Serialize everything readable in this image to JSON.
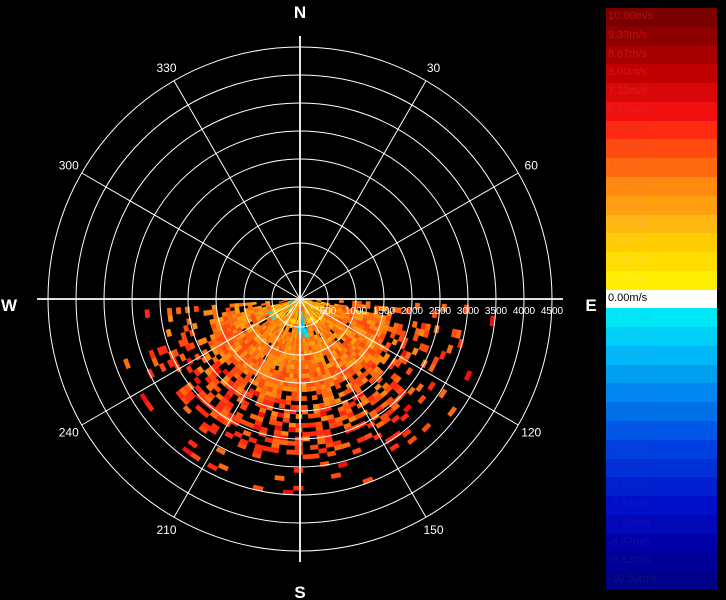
{
  "chart_data": {
    "type": "polar-ppi",
    "title": "",
    "compass": {
      "north": "N",
      "east": "E",
      "south": "S",
      "west": "W"
    },
    "angle_labels": [
      "30",
      "60",
      "120",
      "150",
      "210",
      "240",
      "300",
      "330"
    ],
    "range_ticks": [
      "500",
      "1000",
      "1500",
      "2000",
      "2500",
      "3000",
      "3500",
      "4000",
      "4500"
    ],
    "range_max": 4500,
    "unit": "m/s",
    "colorbar": [
      {
        "label": "10.00m/s",
        "value": 10.0,
        "color": "#7a0000",
        "text_color": "#b81010"
      },
      {
        "label": "9.33m/s",
        "value": 9.33,
        "color": "#8e0000",
        "text_color": "#c01010"
      },
      {
        "label": "8.67m/s",
        "value": 8.67,
        "color": "#a80000",
        "text_color": "#c81414"
      },
      {
        "label": "8.00m/s",
        "value": 8.0,
        "color": "#c00000",
        "text_color": "#d01818"
      },
      {
        "label": "7.33m/s",
        "value": 7.33,
        "color": "#d80808",
        "text_color": "#d81c1c"
      },
      {
        "label": "6.67m/s",
        "value": 6.67,
        "color": "#f01010",
        "text_color": "#e02020"
      },
      {
        "label": "6.00m/s",
        "value": 6.0,
        "color": "#ff2a10",
        "text_color": "#e83020"
      },
      {
        "label": "5.33m/s",
        "value": 5.33,
        "color": "#ff4a10",
        "text_color": "#f04a20"
      },
      {
        "label": "4.67m/s",
        "value": 4.67,
        "color": "#ff6a10",
        "text_color": "#f86420"
      },
      {
        "label": "4.00m/s",
        "value": 4.0,
        "color": "#ff8a10",
        "text_color": "#ff8020"
      },
      {
        "label": "3.33m/s",
        "value": 3.33,
        "color": "#ffa010",
        "text_color": "#ff9828"
      },
      {
        "label": "2.67m/s",
        "value": 2.67,
        "color": "#ffb810",
        "text_color": "#ffb030"
      },
      {
        "label": "2.00m/s",
        "value": 2.0,
        "color": "#ffcc00",
        "text_color": "#ffc830"
      },
      {
        "label": "1.33m/s",
        "value": 1.33,
        "color": "#ffdd00",
        "text_color": "#ffdc30"
      },
      {
        "label": "0.67m/s",
        "value": 0.67,
        "color": "#ffee00",
        "text_color": "#ffee30"
      },
      {
        "label": "0.00m/s",
        "value": 0.0,
        "color": "#ffffff",
        "text_color": "#ffffff"
      },
      {
        "label": "-0.67m/s",
        "value": -0.67,
        "color": "#00e8f8",
        "text_color": "#10d8f0"
      },
      {
        "label": "-1.33m/s",
        "value": -1.33,
        "color": "#00d0f8",
        "text_color": "#10c8f0"
      },
      {
        "label": "-2.00m/s",
        "value": -2.0,
        "color": "#00b8f8",
        "text_color": "#10b0f0"
      },
      {
        "label": "-2.67m/s",
        "value": -2.67,
        "color": "#00a0f0",
        "text_color": "#1098f0"
      },
      {
        "label": "-3.33m/s",
        "value": -3.33,
        "color": "#0088f0",
        "text_color": "#1080f0"
      },
      {
        "label": "-4.00m/s",
        "value": -4.0,
        "color": "#0070e8",
        "text_color": "#1068e8"
      },
      {
        "label": "-4.67m/s",
        "value": -4.67,
        "color": "#0058e8",
        "text_color": "#1050e0"
      },
      {
        "label": "-5.33m/s",
        "value": -5.33,
        "color": "#0040e0",
        "text_color": "#1040d8"
      },
      {
        "label": "-6.00m/s",
        "value": -6.0,
        "color": "#0030d8",
        "text_color": "#1030d0"
      },
      {
        "label": "-6.67m/s",
        "value": -6.67,
        "color": "#0020d0",
        "text_color": "#1020c8"
      },
      {
        "label": "-7.33m/s",
        "value": -7.33,
        "color": "#0010c8",
        "text_color": "#1018c0"
      },
      {
        "label": "-8.00m/s",
        "value": -8.0,
        "color": "#0008b8",
        "text_color": "#1010b0"
      },
      {
        "label": "-8.67m/s",
        "value": -8.67,
        "color": "#0000a8",
        "text_color": "#1010a0"
      },
      {
        "label": "-9.33m/s",
        "value": -9.33,
        "color": "#000098",
        "text_color": "#101090"
      },
      {
        "label": "-10.00m/s",
        "value": -10.0,
        "color": "#000088",
        "text_color": "#101080"
      }
    ],
    "sector": {
      "azimuth_range_deg": [
        92,
        264
      ],
      "core_range_m": [
        0,
        1600
      ],
      "outer_range_m": [
        1600,
        2800
      ],
      "dominant_values_mps": [
        2.67,
        3.33,
        4.0,
        4.67
      ],
      "max_value_mps": 6.67,
      "negative_spot_values_mps": [
        -0.67,
        -1.33
      ]
    }
  }
}
